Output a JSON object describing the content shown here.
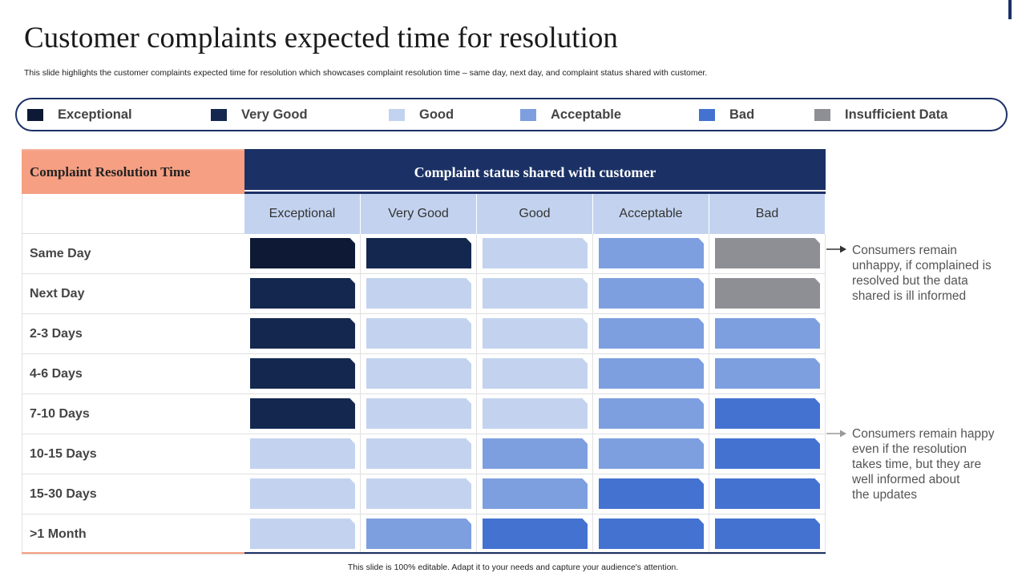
{
  "title": "Customer complaints expected time for resolution",
  "subtitle": "This slide highlights the customer complaints expected time for resolution which showcases complaint resolution time – same day, next day,   and complaint status shared with customer.",
  "legend": [
    {
      "label": "Exceptional",
      "color": "#0e1a35"
    },
    {
      "label": "Very Good",
      "color": "#14284f"
    },
    {
      "label": "Good",
      "color": "#c3d3ef"
    },
    {
      "label": "Acceptable",
      "color": "#7d9fdf"
    },
    {
      "label": "Bad",
      "color": "#4472d1"
    },
    {
      "label": "Insufficient Data",
      "color": "#8e8f94"
    }
  ],
  "table": {
    "row_header": "Complaint Resolution Time",
    "col_header": "Complaint status shared with customer",
    "columns": [
      "Exceptional",
      "Very Good",
      "Good",
      "Acceptable",
      "Bad"
    ],
    "rows": [
      {
        "label": "Same Day",
        "ratings": [
          "Exceptional",
          "Very Good",
          "Good",
          "Acceptable",
          "Insufficient Data"
        ]
      },
      {
        "label": "Next Day",
        "ratings": [
          "Very Good",
          "Good",
          "Good",
          "Acceptable",
          "Insufficient Data"
        ]
      },
      {
        "label": "2-3 Days",
        "ratings": [
          "Very Good",
          "Good",
          "Good",
          "Acceptable",
          "Acceptable"
        ]
      },
      {
        "label": "4-6 Days",
        "ratings": [
          "Very Good",
          "Good",
          "Good",
          "Acceptable",
          "Acceptable"
        ]
      },
      {
        "label": "7-10 Days",
        "ratings": [
          "Very Good",
          "Good",
          "Good",
          "Acceptable",
          "Bad"
        ]
      },
      {
        "label": "10-15 Days",
        "ratings": [
          "Good",
          "Good",
          "Acceptable",
          "Acceptable",
          "Bad"
        ]
      },
      {
        "label": "15-30 Days",
        "ratings": [
          "Good",
          "Good",
          "Acceptable",
          "Bad",
          "Bad"
        ]
      },
      {
        "label": ">1 Month",
        "ratings": [
          "Good",
          "Acceptable",
          "Bad",
          "Bad",
          "Bad"
        ]
      }
    ]
  },
  "notes": [
    {
      "text": "Consumers remain\nunhappy,  if complained is\nresolved but the data\nshared is ill informed",
      "arrow_color": "#333333"
    },
    {
      "text": "Consumers remain happy\neven if the resolution\ntakes time, but they are\nwell informed about\nthe updates",
      "arrow_color": "#9a9a9a"
    }
  ],
  "footer": "This slide is 100% editable. Adapt it to your needs and capture your audience's attention."
}
